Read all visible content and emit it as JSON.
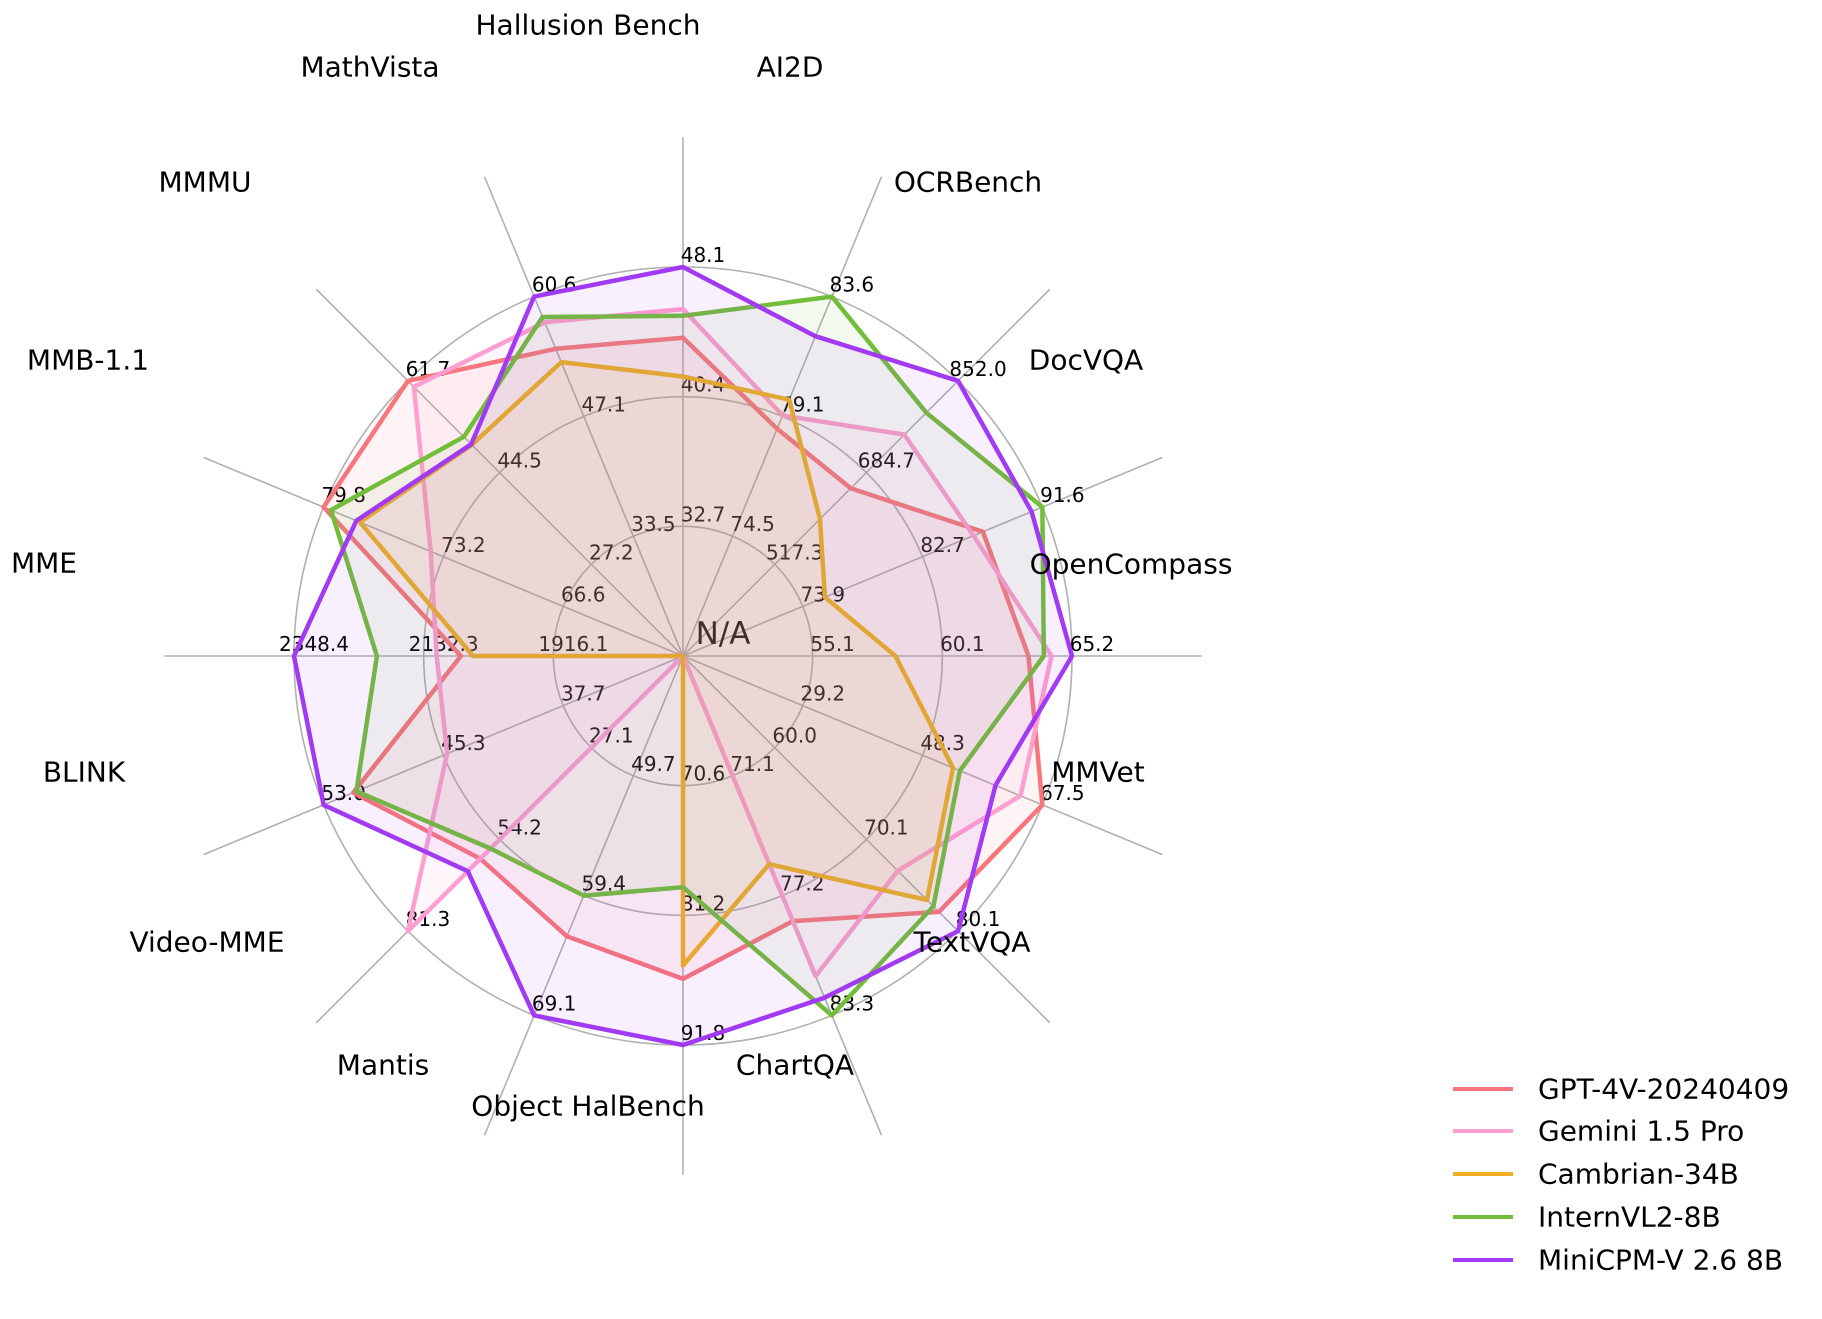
{
  "figure": {
    "background": "#ffffff",
    "grid_color": "#b0b0b0",
    "text_color": "#000000",
    "center_label": "N/A"
  },
  "chart_data": {
    "type": "radar",
    "title": "",
    "start": "top",
    "direction": "clockwise",
    "grid": true,
    "ring_fractions": [
      0.3333,
      0.6667,
      1.0
    ],
    "na_policy": "missing values plotted at center",
    "axes": [
      {
        "label": "Hallusion Bench",
        "ticks": [
          "32.7",
          "40.4",
          "48.1"
        ],
        "center_value": 25.0,
        "max": 48.1
      },
      {
        "label": "AI2D",
        "ticks": [
          "74.5",
          "79.1",
          "83.6"
        ],
        "center_value": 70.0,
        "max": 83.6
      },
      {
        "label": "OCRBench",
        "ticks": [
          "517.3",
          "684.7",
          "852.0"
        ],
        "center_value": 350.0,
        "max": 852.0
      },
      {
        "label": "DocVQA",
        "ticks": [
          "73.9",
          "82.7",
          "91.6"
        ],
        "center_value": 65.0,
        "max": 91.6
      },
      {
        "label": "OpenCompass",
        "ticks": [
          "55.1",
          "60.1",
          "65.2"
        ],
        "center_value": 50.0,
        "max": 65.2
      },
      {
        "label": "MMVet",
        "ticks": [
          "29.2",
          "48.3",
          "67.5"
        ],
        "center_value": 10.0,
        "max": 67.5
      },
      {
        "label": "TextVQA",
        "ticks": [
          "60.0",
          "70.1",
          "80.1"
        ],
        "center_value": 50.0,
        "max": 80.1
      },
      {
        "label": "ChartQA",
        "ticks": [
          "71.1",
          "77.2",
          "83.3"
        ],
        "center_value": 65.0,
        "max": 83.3
      },
      {
        "label": "Object HalBench",
        "ticks": [
          "70.6",
          "81.2",
          "91.8"
        ],
        "center_value": 60.0,
        "max": 91.8
      },
      {
        "label": "Mantis",
        "ticks": [
          "49.7",
          "59.4",
          "69.1"
        ],
        "center_value": 40.0,
        "max": 69.1
      },
      {
        "label": "Video-MME",
        "ticks": [
          "27.1",
          "54.2",
          "81.3"
        ],
        "center_value": 0.0,
        "max": 81.3
      },
      {
        "label": "BLINK",
        "ticks": [
          "37.7",
          "45.3",
          "53.0"
        ],
        "center_value": 30.0,
        "max": 53.0
      },
      {
        "label": "MME",
        "ticks": [
          "1916.1",
          "2132.3",
          "2348.4"
        ],
        "center_value": 1700.0,
        "max": 2348.4
      },
      {
        "label": "MMB-1.1",
        "ticks": [
          "66.6",
          "73.2",
          "79.8"
        ],
        "center_value": 60.0,
        "max": 79.8
      },
      {
        "label": "MMMU",
        "ticks": [
          "27.2",
          "44.5",
          "61.7"
        ],
        "center_value": 10.0,
        "max": 61.7
      },
      {
        "label": "MathVista",
        "ticks": [
          "33.5",
          "47.1",
          "60.6"
        ],
        "center_value": 20.0,
        "max": 60.6
      }
    ],
    "series": [
      {
        "name": "GPT-4V-20240409",
        "color": "#f8767b",
        "values": [
          43.9,
          78.6,
          656.0,
          87.2,
          63.5,
          67.5,
          78.0,
          78.5,
          86.4,
          62.7,
          59.9,
          51.1,
          2070.2,
          79.8,
          61.7,
          54.7
        ]
      },
      {
        "name": "Gemini 1.5 Pro",
        "color": "#ff9fd0",
        "values": [
          45.6,
          79.1,
          754.0,
          86.5,
          64.4,
          64.0,
          73.5,
          81.3,
          null,
          null,
          81.3,
          45.1,
          2110.6,
          73.9,
          60.6,
          57.7
        ]
      },
      {
        "name": "Cambrian-34B",
        "color": "#f0af24",
        "values": [
          41.6,
          79.7,
          600.0,
          75.5,
          58.3,
          53.2,
          76.7,
          75.6,
          85.3,
          null,
          null,
          null,
          2049.9,
          77.8,
          49.7,
          53.2
        ]
      },
      {
        "name": "InternVL2-8B",
        "color": "#72bd3a",
        "values": [
          45.2,
          83.6,
          794.0,
          91.6,
          64.1,
          54.3,
          77.4,
          83.3,
          78.9,
          59.4,
          56.9,
          50.9,
          2210.3,
          79.4,
          51.2,
          58.3
        ]
      },
      {
        "name": "MiniCPM-V 2.6 8B",
        "color": "#a13af2",
        "values": [
          48.1,
          82.1,
          852.0,
          90.8,
          65.2,
          60.0,
          80.1,
          82.4,
          91.8,
          69.1,
          63.6,
          53.0,
          2348.4,
          78.0,
          49.8,
          60.6
        ]
      }
    ],
    "legend": {
      "position": "lower-right"
    }
  }
}
